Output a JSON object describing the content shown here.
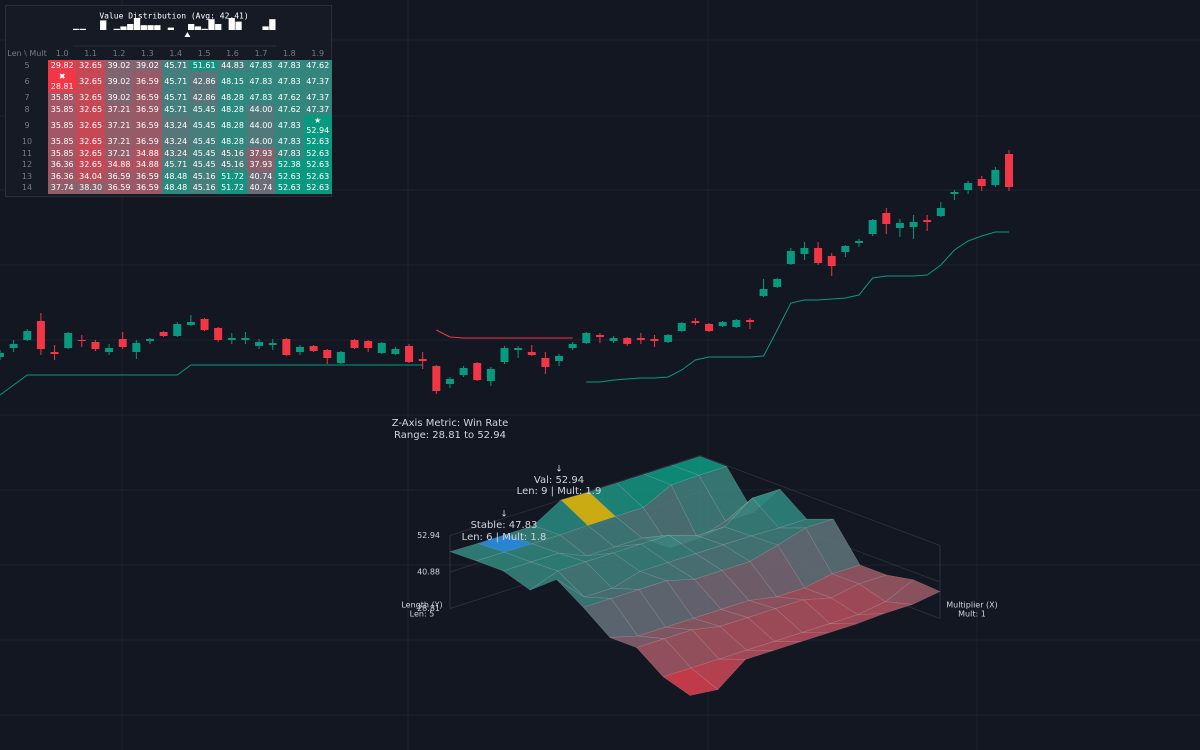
{
  "chart_data": {
    "type": "candlestick",
    "up_color": "#089981",
    "down_color": "#f23645",
    "ylim": [
      0,
      750
    ],
    "open": [
      393,
      402,
      410,
      429,
      398,
      402,
      410,
      408,
      398,
      411,
      398,
      409,
      418,
      414,
      425,
      431,
      422,
      410,
      410,
      404,
      405,
      411,
      398,
      404,
      400,
      387,
      410,
      409,
      397,
      396,
      404,
      391,
      384,
      366,
      375,
      387,
      369,
      388,
      400,
      398,
      392,
      389,
      402,
      407,
      415,
      409,
      412,
      412,
      411,
      408,
      419,
      429,
      426,
      424,
      423,
      430,
      454,
      463,
      486,
      496,
      502,
      494,
      498,
      507,
      516,
      537,
      522,
      523,
      530,
      534,
      556,
      560,
      571,
      565,
      596
    ],
    "high": [
      400,
      410,
      421,
      437,
      405,
      418,
      415,
      410,
      406,
      418,
      410,
      412,
      419,
      428,
      435,
      432,
      423,
      417,
      418,
      411,
      411,
      412,
      405,
      405,
      401,
      399,
      411,
      410,
      408,
      403,
      406,
      398,
      385,
      373,
      384,
      388,
      383,
      404,
      404,
      405,
      398,
      396,
      408,
      418,
      417,
      414,
      413,
      417,
      415,
      416,
      428,
      432,
      427,
      429,
      431,
      432,
      471,
      472,
      502,
      508,
      508,
      497,
      505,
      511,
      531,
      542,
      531,
      535,
      535,
      548,
      560,
      569,
      574,
      583,
      600
    ],
    "low": [
      390,
      398,
      409,
      395,
      390,
      401,
      403,
      399,
      395,
      401,
      391,
      406,
      413,
      413,
      424,
      419,
      408,
      406,
      406,
      401,
      400,
      394,
      395,
      398,
      386,
      386,
      401,
      398,
      396,
      395,
      387,
      381,
      356,
      362,
      373,
      369,
      364,
      386,
      392,
      394,
      376,
      384,
      400,
      406,
      407,
      407,
      404,
      406,
      403,
      407,
      418,
      425,
      418,
      423,
      422,
      421,
      453,
      462,
      485,
      490,
      485,
      474,
      493,
      503,
      514,
      516,
      513,
      511,
      519,
      533,
      550,
      556,
      559,
      563,
      559
    ],
    "close": [
      397,
      406,
      419,
      401,
      396,
      417,
      409,
      401,
      402,
      403,
      407,
      411,
      414,
      426,
      428,
      420,
      410,
      412,
      412,
      408,
      407,
      395,
      403,
      399,
      392,
      398,
      402,
      402,
      407,
      401,
      388,
      389,
      359,
      371,
      382,
      370,
      381,
      402,
      402,
      395,
      383,
      394,
      406,
      417,
      413,
      412,
      406,
      410,
      409,
      415,
      427,
      427,
      419,
      428,
      430,
      428,
      461,
      471,
      499,
      502,
      487,
      484,
      504,
      509,
      530,
      526,
      527,
      528,
      528,
      542,
      558,
      567,
      564,
      580,
      563
    ],
    "series": [
      {
        "color": "#089981",
        "values": [
          355,
          365,
          375,
          375,
          375,
          375,
          375,
          375,
          375,
          375,
          375,
          375,
          375,
          375,
          385,
          385,
          385,
          385,
          385,
          385,
          385,
          385,
          385,
          385,
          385,
          385,
          385,
          385,
          385,
          385,
          385,
          385,
          null,
          null,
          null,
          null,
          null,
          null,
          null,
          null,
          null,
          null,
          null,
          368,
          368,
          370,
          371,
          372,
          372,
          373,
          380,
          390,
          393,
          393,
          393,
          393,
          394,
          420,
          447,
          450,
          450,
          451,
          452,
          455,
          472,
          474,
          474,
          474,
          475,
          485,
          500,
          509,
          514,
          518,
          518
        ]
      },
      {
        "color": "#f23645",
        "values": [
          null,
          null,
          null,
          null,
          null,
          null,
          null,
          null,
          null,
          null,
          null,
          null,
          null,
          null,
          null,
          null,
          null,
          null,
          null,
          null,
          null,
          null,
          null,
          null,
          null,
          null,
          null,
          null,
          null,
          null,
          null,
          null,
          420,
          413,
          412,
          412,
          412,
          412,
          412,
          412,
          412,
          412,
          412,
          null,
          null,
          null,
          null,
          null,
          null,
          null,
          null,
          null,
          null,
          null,
          null,
          null,
          null,
          null,
          null,
          null,
          null,
          null,
          null,
          null,
          null,
          null,
          null,
          null,
          null,
          null,
          null,
          null,
          null,
          null,
          null
        ]
      }
    ]
  },
  "histogram": {
    "title": "Value Distribution (Avg: 42.41)",
    "avg": 42.41,
    "color": "#ffffff"
  },
  "heatmap": {
    "corner": "Len \\ Mult",
    "columns": [
      "1.0",
      "1.1",
      "1.2",
      "1.3",
      "1.4",
      "1.5",
      "1.6",
      "1.7",
      "1.8",
      "1.9"
    ],
    "rows": [
      5,
      6,
      7,
      8,
      9,
      10,
      11,
      12,
      13,
      14
    ],
    "min_marker": "✖",
    "max_marker": "★",
    "colors": {
      "low": "#f23645",
      "mid": "#6a6d78",
      "high": "#089981"
    },
    "values": [
      [
        29.82,
        32.65,
        39.02,
        39.02,
        45.71,
        51.61,
        44.83,
        47.83,
        47.83,
        47.62
      ],
      [
        28.81,
        32.65,
        39.02,
        36.59,
        45.71,
        42.86,
        48.15,
        47.83,
        47.83,
        47.37
      ],
      [
        35.85,
        32.65,
        39.02,
        36.59,
        45.71,
        42.86,
        48.28,
        47.83,
        47.62,
        47.37
      ],
      [
        35.85,
        32.65,
        37.21,
        36.59,
        45.71,
        45.45,
        48.28,
        44.0,
        47.62,
        47.37
      ],
      [
        35.85,
        32.65,
        37.21,
        36.59,
        43.24,
        45.45,
        48.28,
        44.0,
        47.83,
        52.94
      ],
      [
        35.85,
        32.65,
        37.21,
        36.59,
        43.24,
        45.45,
        48.28,
        44.0,
        47.83,
        52.63
      ],
      [
        35.85,
        32.65,
        37.21,
        34.88,
        43.24,
        45.45,
        45.16,
        37.93,
        47.83,
        52.63
      ],
      [
        36.36,
        32.65,
        34.88,
        34.88,
        45.71,
        45.45,
        45.16,
        37.93,
        52.38,
        52.63
      ],
      [
        36.36,
        34.04,
        36.59,
        36.59,
        48.48,
        45.16,
        51.72,
        40.74,
        52.63,
        52.63
      ],
      [
        37.74,
        38.3,
        36.59,
        36.59,
        48.48,
        45.16,
        51.72,
        40.74,
        52.63,
        52.63
      ]
    ],
    "value_labels": [
      [
        "29.82",
        "32.65",
        "39.02",
        "39.02",
        "45.71",
        "51.61",
        "44.83",
        "47.83",
        "47.83",
        "47.62"
      ],
      [
        "28.81",
        "32.65",
        "39.02",
        "36.59",
        "45.71",
        "42.86",
        "48.15",
        "47.83",
        "47.83",
        "47.37"
      ],
      [
        "35.85",
        "32.65",
        "39.02",
        "36.59",
        "45.71",
        "42.86",
        "48.28",
        "47.83",
        "47.62",
        "47.37"
      ],
      [
        "35.85",
        "32.65",
        "37.21",
        "36.59",
        "45.71",
        "45.45",
        "48.28",
        "44.00",
        "47.62",
        "47.37"
      ],
      [
        "35.85",
        "32.65",
        "37.21",
        "36.59",
        "43.24",
        "45.45",
        "48.28",
        "44.00",
        "47.83",
        "52.94"
      ],
      [
        "35.85",
        "32.65",
        "37.21",
        "36.59",
        "43.24",
        "45.45",
        "48.28",
        "44.00",
        "47.83",
        "52.63"
      ],
      [
        "35.85",
        "32.65",
        "37.21",
        "34.88",
        "43.24",
        "45.45",
        "45.16",
        "37.93",
        "47.83",
        "52.63"
      ],
      [
        "36.36",
        "32.65",
        "34.88",
        "34.88",
        "45.71",
        "45.45",
        "45.16",
        "37.93",
        "52.38",
        "52.63"
      ],
      [
        "36.36",
        "34.04",
        "36.59",
        "36.59",
        "48.48",
        "45.16",
        "51.72",
        "40.74",
        "52.63",
        "52.63"
      ],
      [
        "37.74",
        "38.30",
        "36.59",
        "36.59",
        "48.48",
        "45.16",
        "51.72",
        "40.74",
        "52.63",
        "52.63"
      ]
    ]
  },
  "surface": {
    "title": "Z-Axis Metric: Win Rate",
    "subtitle": "Range: 28.81 to 52.94",
    "zlim": [
      28.81,
      52.94
    ],
    "zticks": [
      52.94,
      40.88,
      28.81
    ],
    "length_label": "Length (Y)",
    "length_start": "Len: 5",
    "mult_label": "Multiplier (X)",
    "mult_start": "Mult: 1",
    "max": {
      "arrow": "↓",
      "label": "Val: 52.94",
      "detail": "Len: 9 | Mult: 1.9",
      "row": 9,
      "column": "1.9",
      "color": "#d4ad0c"
    },
    "stable": {
      "arrow": "↓",
      "label": "Stable: 47.83",
      "detail": "Len: 6 | Mult: 1.8",
      "row": 6,
      "column": "1.8",
      "color": "#2a86d6"
    }
  }
}
